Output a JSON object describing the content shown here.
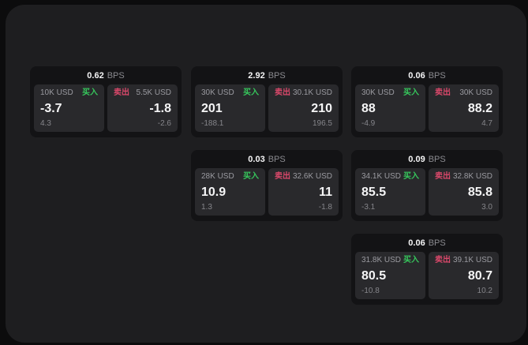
{
  "labels": {
    "bps_unit": "BPS",
    "buy": "买入",
    "sell": "卖出"
  },
  "colors": {
    "buy_green": "#36c75c",
    "sell_red": "#d9486a",
    "window_bg": "#1e1e20",
    "card_bg": "#131315",
    "panel_bg": "#29292c"
  },
  "cards": [
    {
      "bps_value": "0.62",
      "buy": {
        "notional": "10K USD",
        "price": "-3.7",
        "delta": "4.3"
      },
      "sell": {
        "notional": "5.5K USD",
        "price": "-1.8",
        "delta": "-2.6"
      }
    },
    {
      "bps_value": "2.92",
      "buy": {
        "notional": "30K USD",
        "price": "201",
        "delta": "-188.1"
      },
      "sell": {
        "notional": "30.1K USD",
        "price": "210",
        "delta": "196.5"
      }
    },
    {
      "bps_value": "0.06",
      "buy": {
        "notional": "30K USD",
        "price": "88",
        "delta": "-4.9"
      },
      "sell": {
        "notional": "30K USD",
        "price": "88.2",
        "delta": "4.7"
      }
    },
    {
      "bps_value": "0.03",
      "buy": {
        "notional": "28K USD",
        "price": "10.9",
        "delta": "1.3"
      },
      "sell": {
        "notional": "32.6K USD",
        "price": "11",
        "delta": "-1.8"
      }
    },
    {
      "bps_value": "0.09",
      "buy": {
        "notional": "34.1K USD",
        "price": "85.5",
        "delta": "-3.1"
      },
      "sell": {
        "notional": "32.8K USD",
        "price": "85.8",
        "delta": "3.0"
      }
    },
    {
      "bps_value": "0.06",
      "buy": {
        "notional": "31.8K USD",
        "price": "80.5",
        "delta": "-10.8"
      },
      "sell": {
        "notional": "39.1K USD",
        "price": "80.7",
        "delta": "10.2"
      }
    }
  ]
}
